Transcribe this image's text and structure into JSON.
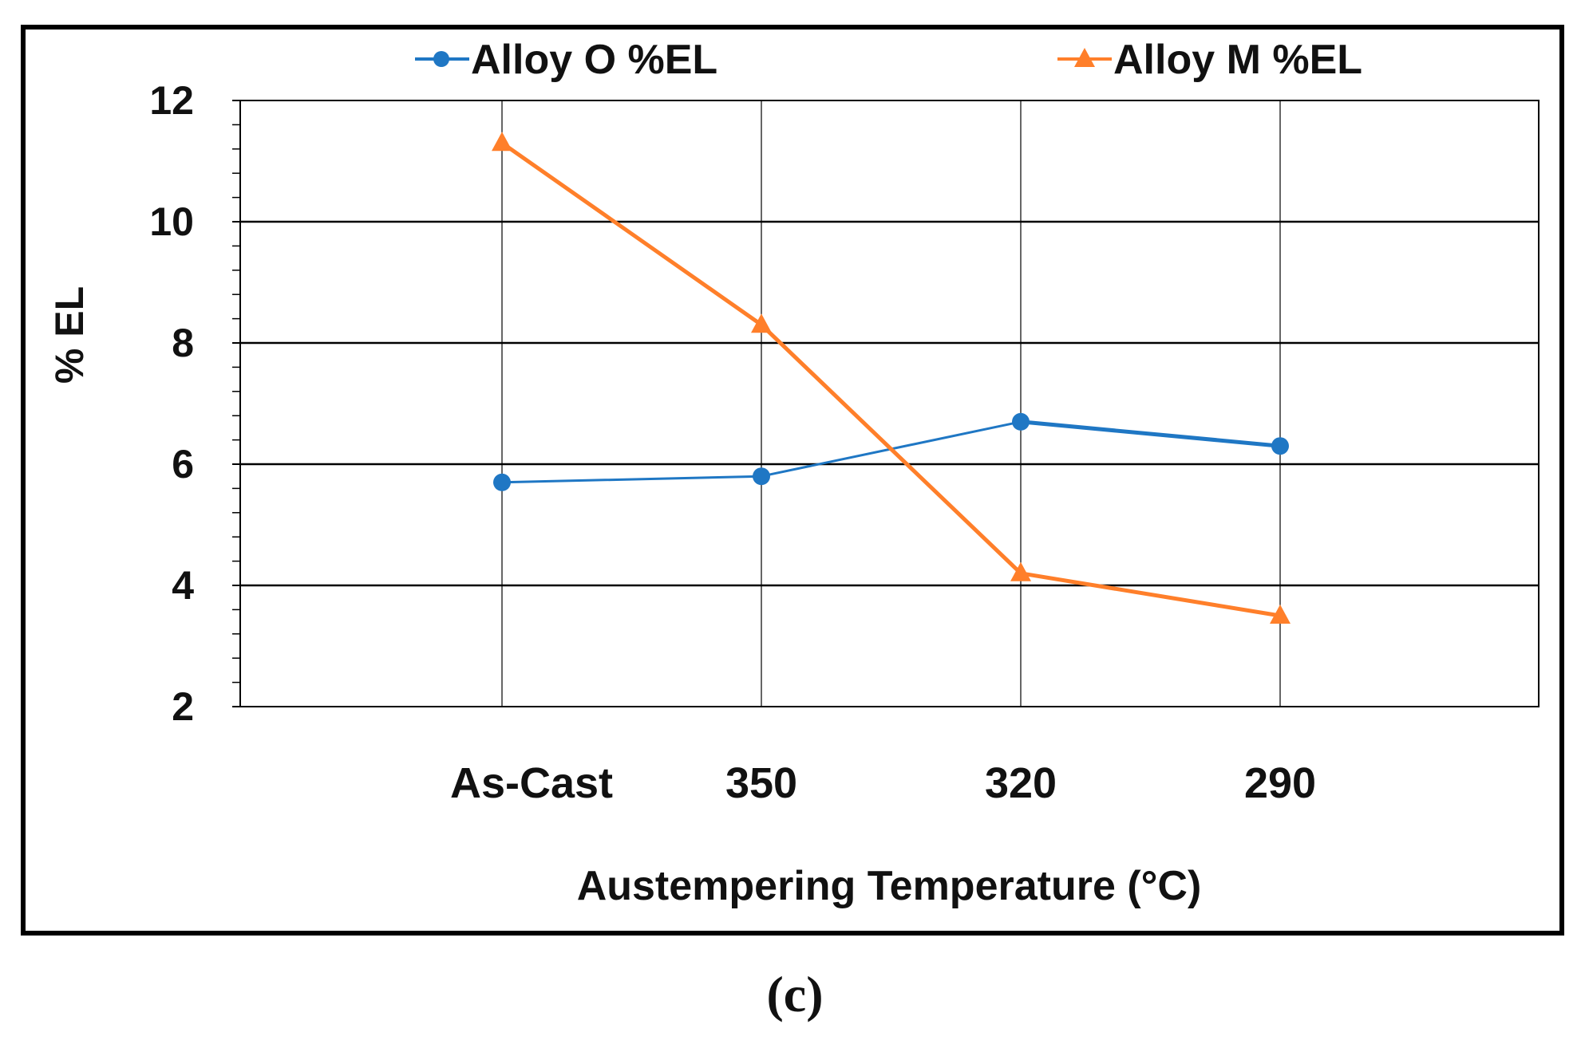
{
  "chart_data": {
    "type": "line",
    "categories": [
      "As-Cast",
      "350",
      "320",
      "290"
    ],
    "series": [
      {
        "name": "Alloy O %EL",
        "values": [
          5.7,
          5.8,
          6.7,
          6.3
        ],
        "color": "#1f77c4",
        "marker": "circle"
      },
      {
        "name": "Alloy M %EL",
        "values": [
          11.3,
          8.3,
          4.2,
          3.5
        ],
        "color": "#ff7f2a",
        "marker": "triangle"
      }
    ],
    "title": "",
    "xlabel": "Austempering Temperature (°C)",
    "ylabel": "% EL",
    "ylim": [
      2,
      12
    ],
    "yticks": [
      2,
      4,
      6,
      8,
      10,
      12
    ],
    "grid": true,
    "legend_position": "top"
  },
  "caption": "(c)"
}
